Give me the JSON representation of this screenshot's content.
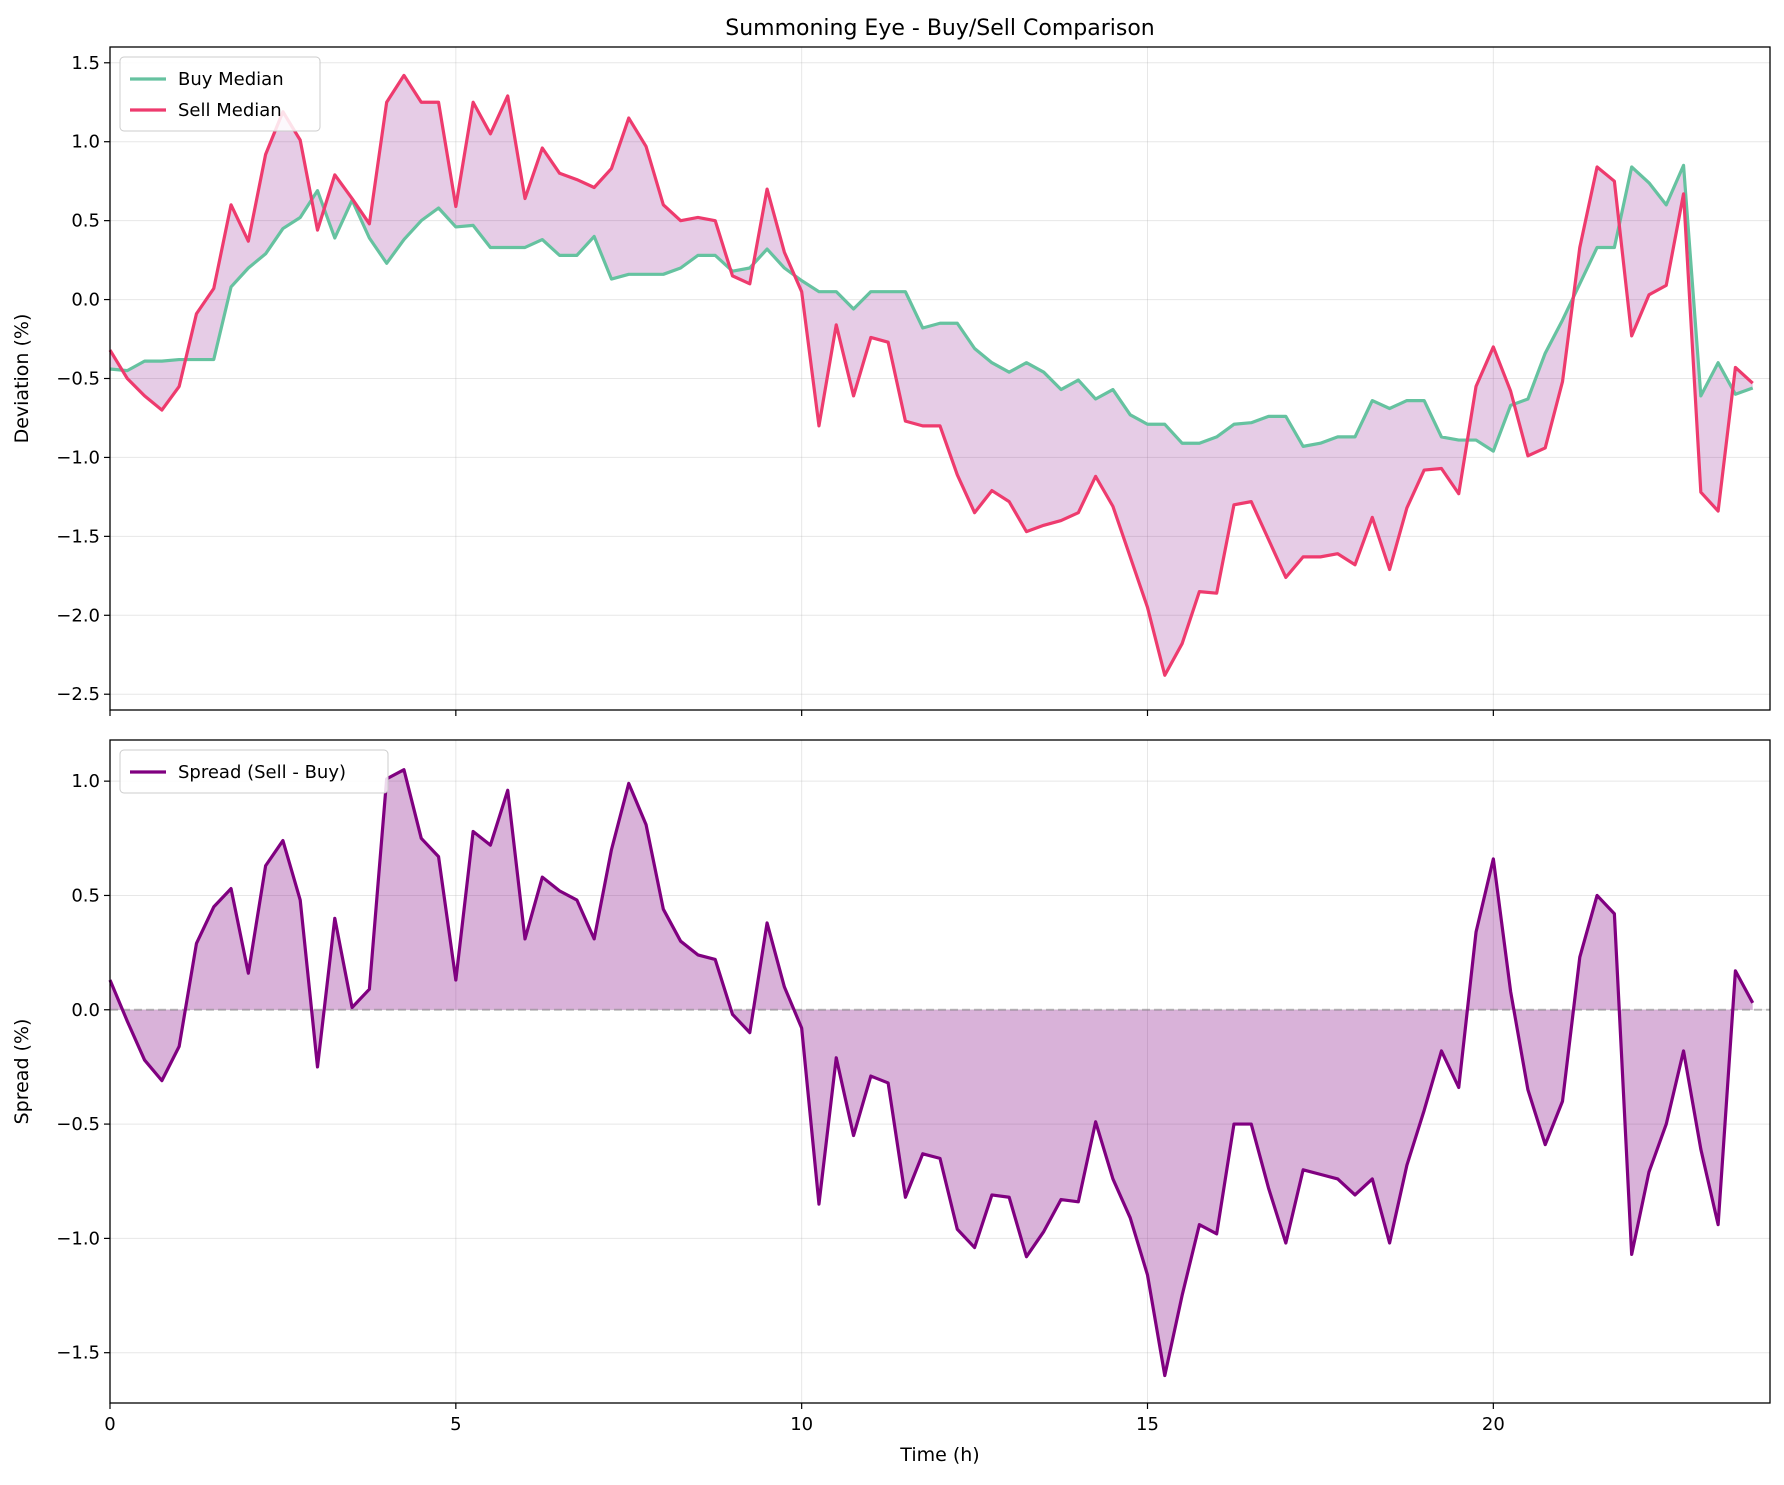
{
  "chart_data": [
    {
      "type": "line",
      "title": "Summoning Eye - Buy/Sell Comparison",
      "xlabel": "",
      "ylabel": "Deviation (%)",
      "xlim": [
        0,
        24
      ],
      "ylim": [
        -2.6,
        1.6
      ],
      "xticks": [
        0,
        5,
        10,
        15,
        20
      ],
      "yticks": [
        -2.5,
        -2.0,
        -1.5,
        -1.0,
        -0.5,
        0.0,
        0.5,
        1.0,
        1.5
      ],
      "ytick_labels": [
        "−2.5",
        "−2.0",
        "−1.5",
        "−1.0",
        "−0.5",
        "0.0",
        "0.5",
        "1.0",
        "1.5"
      ],
      "grid": true,
      "legend_position": "upper-left",
      "x": [
        0,
        0.25,
        0.5,
        0.75,
        1,
        1.25,
        1.5,
        1.75,
        2,
        2.25,
        2.5,
        2.75,
        3,
        3.25,
        3.5,
        3.75,
        4,
        4.25,
        4.5,
        4.75,
        5,
        5.25,
        5.5,
        5.75,
        6,
        6.25,
        6.5,
        6.75,
        7,
        7.25,
        7.5,
        7.75,
        8,
        8.25,
        8.5,
        8.75,
        9,
        9.25,
        9.5,
        9.75,
        10,
        10.25,
        10.5,
        10.75,
        11,
        11.25,
        11.5,
        11.75,
        12,
        12.25,
        12.5,
        12.75,
        13,
        13.25,
        13.5,
        13.75,
        14,
        14.25,
        14.5,
        14.75,
        15,
        15.25,
        15.5,
        15.75,
        16,
        16.25,
        16.5,
        16.75,
        17,
        17.25,
        17.5,
        17.75,
        18,
        18.25,
        18.5,
        18.75,
        19,
        19.25,
        19.5,
        19.75,
        20,
        20.25,
        20.5,
        20.75,
        21,
        21.25,
        21.5,
        21.75,
        22,
        22.25,
        22.5,
        22.75,
        23,
        23.25,
        23.5,
        23.75
      ],
      "series": [
        {
          "name": "Buy Median",
          "color": "#66c2a0",
          "values": [
            -0.44,
            -0.45,
            -0.39,
            -0.39,
            -0.38,
            -0.38,
            -0.38,
            0.08,
            0.2,
            0.29,
            0.45,
            0.52,
            0.69,
            0.39,
            0.63,
            0.39,
            0.23,
            0.38,
            0.5,
            0.58,
            0.46,
            0.47,
            0.33,
            0.33,
            0.33,
            0.38,
            0.28,
            0.28,
            0.4,
            0.13,
            0.16,
            0.16,
            0.16,
            0.2,
            0.28,
            0.28,
            0.18,
            0.2,
            0.32,
            0.2,
            0.12,
            0.05,
            0.05,
            -0.06,
            0.05,
            0.05,
            0.05,
            -0.18,
            -0.15,
            -0.15,
            -0.31,
            -0.4,
            -0.46,
            -0.4,
            -0.46,
            -0.57,
            -0.51,
            -0.63,
            -0.57,
            -0.73,
            -0.79,
            -0.79,
            -0.91,
            -0.91,
            -0.87,
            -0.79,
            -0.78,
            -0.74,
            -0.74,
            -0.93,
            -0.91,
            -0.87,
            -0.87,
            -0.64,
            -0.69,
            -0.64,
            -0.64,
            -0.87,
            -0.89,
            -0.89,
            -0.96,
            -0.67,
            -0.63,
            -0.34,
            -0.13,
            0.1,
            0.33,
            0.33,
            0.84,
            0.74,
            0.6,
            0.85,
            -0.61,
            -0.4,
            -0.6,
            -0.56
          ]
        },
        {
          "name": "Sell Median",
          "color": "#ee3b6e",
          "values": [
            -0.32,
            -0.5,
            -0.61,
            -0.7,
            -0.55,
            -0.09,
            0.07,
            0.6,
            0.37,
            0.92,
            1.19,
            1.01,
            0.44,
            0.79,
            0.64,
            0.48,
            1.25,
            1.42,
            1.25,
            1.25,
            0.59,
            1.25,
            1.05,
            1.29,
            0.64,
            0.96,
            0.8,
            0.76,
            0.71,
            0.83,
            1.15,
            0.97,
            0.6,
            0.5,
            0.52,
            0.5,
            0.15,
            0.1,
            0.7,
            0.3,
            0.05,
            -0.8,
            -0.16,
            -0.61,
            -0.24,
            -0.27,
            -0.77,
            -0.8,
            -0.8,
            -1.11,
            -1.35,
            -1.21,
            -1.28,
            -1.47,
            -1.43,
            -1.4,
            -1.35,
            -1.12,
            -1.31,
            -1.63,
            -1.95,
            -2.38,
            -2.18,
            -1.85,
            -1.86,
            -1.3,
            -1.28,
            -1.52,
            -1.76,
            -1.63,
            -1.63,
            -1.61,
            -1.68,
            -1.38,
            -1.71,
            -1.32,
            -1.08,
            -1.07,
            -1.23,
            -0.55,
            -0.3,
            -0.58,
            -0.99,
            -0.94,
            -0.52,
            0.33,
            0.84,
            0.75,
            -0.23,
            0.03,
            0.09,
            0.67,
            -1.22,
            -1.34,
            -0.43,
            -0.53
          ]
        }
      ],
      "fill_between": [
        "Buy Median",
        "Sell Median"
      ]
    },
    {
      "type": "area",
      "title": "",
      "xlabel": "Time (h)",
      "ylabel": "Spread (%)",
      "xlim": [
        0,
        24
      ],
      "ylim": [
        -1.72,
        1.18
      ],
      "xticks": [
        0,
        5,
        10,
        15,
        20
      ],
      "xtick_labels": [
        "0",
        "5",
        "10",
        "15",
        "20"
      ],
      "yticks": [
        -1.5,
        -1.0,
        -0.5,
        0.0,
        0.5,
        1.0
      ],
      "ytick_labels": [
        "−1.5",
        "−1.0",
        "−0.5",
        "0.0",
        "0.5",
        "1.0"
      ],
      "grid": true,
      "legend_position": "upper-left",
      "reference_line": 0,
      "series": [
        {
          "name": "Spread (Sell - Buy)",
          "color": "#800080",
          "values": [
            0.13,
            -0.05,
            -0.22,
            -0.31,
            -0.16,
            0.29,
            0.45,
            0.53,
            0.16,
            0.63,
            0.74,
            0.48,
            -0.25,
            0.4,
            0.01,
            0.09,
            1.01,
            1.05,
            0.75,
            0.67,
            0.13,
            0.78,
            0.72,
            0.96,
            0.31,
            0.58,
            0.52,
            0.48,
            0.31,
            0.7,
            0.99,
            0.81,
            0.44,
            0.3,
            0.24,
            0.22,
            -0.02,
            -0.1,
            0.38,
            0.1,
            -0.08,
            -0.85,
            -0.21,
            -0.55,
            -0.29,
            -0.32,
            -0.82,
            -0.63,
            -0.65,
            -0.96,
            -1.04,
            -0.81,
            -0.82,
            -1.08,
            -0.97,
            -0.83,
            -0.84,
            -0.49,
            -0.74,
            -0.91,
            -1.16,
            -1.6,
            -1.25,
            -0.94,
            -0.98,
            -0.5,
            -0.5,
            -0.78,
            -1.02,
            -0.7,
            -0.72,
            -0.74,
            -0.81,
            -0.74,
            -1.02,
            -0.68,
            -0.44,
            -0.18,
            -0.34,
            0.34,
            0.66,
            0.08,
            -0.35,
            -0.59,
            -0.4,
            0.23,
            0.5,
            0.42,
            -1.07,
            -0.71,
            -0.5,
            -0.18,
            -0.61,
            -0.94,
            0.17,
            0.03
          ]
        }
      ]
    }
  ]
}
